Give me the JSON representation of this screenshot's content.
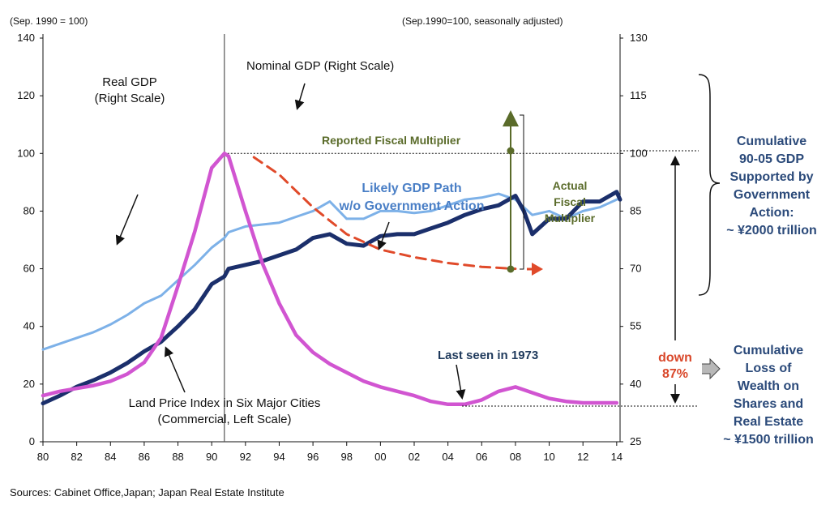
{
  "chart_data": {
    "type": "line",
    "left_axis": {
      "unit_note": "(Sep. 1990 = 100)",
      "range": [
        0,
        140
      ],
      "ticks": [
        "0",
        "20",
        "40",
        "60",
        "80",
        "100",
        "120",
        "140"
      ]
    },
    "right_axis": {
      "unit_note": "(Sep.1990=100, seasonally adjusted)",
      "range": [
        25,
        130
      ],
      "ticks": [
        "25",
        "40",
        "55",
        "70",
        "85",
        "100",
        "115",
        "130"
      ]
    },
    "x_axis": {
      "range": [
        1980,
        2014.2
      ],
      "ticks": [
        "80",
        "82",
        "84",
        "86",
        "88",
        "90",
        "92",
        "94",
        "96",
        "98",
        "00",
        "02",
        "04",
        "06",
        "08",
        "10",
        "12",
        "14"
      ]
    },
    "series": [
      {
        "name": "Nominal GDP (Right Scale)",
        "axis": "right",
        "color": "#1b2f6b",
        "points": [
          [
            1980,
            35
          ],
          [
            1981,
            37
          ],
          [
            1982,
            39.3
          ],
          [
            1983,
            41
          ],
          [
            1984,
            43
          ],
          [
            1985,
            45.5
          ],
          [
            1986,
            48.5
          ],
          [
            1987,
            51
          ],
          [
            1988,
            55
          ],
          [
            1989,
            59.5
          ],
          [
            1990,
            66
          ],
          [
            1990.75,
            68
          ],
          [
            1991,
            70
          ],
          [
            1992,
            71
          ],
          [
            1993,
            72
          ],
          [
            1994,
            73.5
          ],
          [
            1995,
            75
          ],
          [
            1996,
            78
          ],
          [
            1997,
            79
          ],
          [
            1998,
            76.5
          ],
          [
            1999,
            76
          ],
          [
            2000,
            78.5
          ],
          [
            2001,
            79
          ],
          [
            2002,
            79
          ],
          [
            2003,
            80.5
          ],
          [
            2004,
            82
          ],
          [
            2005,
            84
          ],
          [
            2006,
            85.5
          ],
          [
            2007,
            86.5
          ],
          [
            2008,
            89
          ],
          [
            2008.5,
            85
          ],
          [
            2009,
            79
          ],
          [
            2010,
            83
          ],
          [
            2011,
            83
          ],
          [
            2012,
            87.5
          ],
          [
            2013,
            87.5
          ],
          [
            2014,
            90
          ],
          [
            2014.2,
            88
          ]
        ]
      },
      {
        "name": "Real GDP (Right Scale)",
        "axis": "right",
        "color": "#7db1e8",
        "points": [
          [
            1980,
            49
          ],
          [
            1981,
            50.5
          ],
          [
            1982,
            52
          ],
          [
            1983,
            53.5
          ],
          [
            1984,
            55.5
          ],
          [
            1985,
            58
          ],
          [
            1986,
            61
          ],
          [
            1987,
            63
          ],
          [
            1988,
            67
          ],
          [
            1989,
            71
          ],
          [
            1990,
            75.5
          ],
          [
            1990.75,
            78
          ],
          [
            1991,
            79.5
          ],
          [
            1992,
            81
          ],
          [
            1993,
            81.5
          ],
          [
            1994,
            82
          ],
          [
            1995,
            83.5
          ],
          [
            1996,
            85
          ],
          [
            1997,
            87.5
          ],
          [
            1998,
            83
          ],
          [
            1999,
            83
          ],
          [
            2000,
            85
          ],
          [
            2001,
            85
          ],
          [
            2002,
            84.5
          ],
          [
            2003,
            85
          ],
          [
            2004,
            86.5
          ],
          [
            2005,
            88
          ],
          [
            2006,
            88.5
          ],
          [
            2007,
            89.5
          ],
          [
            2008,
            88
          ],
          [
            2009,
            84
          ],
          [
            2010,
            85
          ],
          [
            2011,
            83
          ],
          [
            2012,
            85
          ],
          [
            2013,
            86
          ],
          [
            2014,
            88
          ]
        ]
      },
      {
        "name": "Land Price Index in Six Major Cities (Commercial, Left Scale)",
        "axis": "left",
        "color": "#d155d1",
        "points": [
          [
            1980,
            16
          ],
          [
            1981,
            17.5
          ],
          [
            1982,
            18.5
          ],
          [
            1983,
            19.5
          ],
          [
            1984,
            21
          ],
          [
            1985,
            23.5
          ],
          [
            1986,
            27.5
          ],
          [
            1987,
            36
          ],
          [
            1988,
            54
          ],
          [
            1989,
            73
          ],
          [
            1990,
            95
          ],
          [
            1990.75,
            100
          ],
          [
            1991,
            99
          ],
          [
            1992,
            80
          ],
          [
            1993,
            62
          ],
          [
            1994,
            48
          ],
          [
            1995,
            37
          ],
          [
            1996,
            31
          ],
          [
            1997,
            27
          ],
          [
            1998,
            24
          ],
          [
            1999,
            21
          ],
          [
            2000,
            19
          ],
          [
            2001,
            17.5
          ],
          [
            2002,
            16
          ],
          [
            2003,
            14
          ],
          [
            2004,
            13
          ],
          [
            2005,
            13
          ],
          [
            2006,
            14.5
          ],
          [
            2007,
            17.5
          ],
          [
            2008,
            19
          ],
          [
            2009,
            17
          ],
          [
            2010,
            15
          ],
          [
            2011,
            14
          ],
          [
            2012,
            13.5
          ],
          [
            2013,
            13.5
          ],
          [
            2014,
            13.5
          ]
        ]
      },
      {
        "name": "Likely GDP Path w/o Government Action",
        "axis": "right",
        "color": "#e04a2a",
        "style": "dashed",
        "points": [
          [
            1992.5,
            99
          ],
          [
            1994,
            94.5
          ],
          [
            1996,
            86
          ],
          [
            1998,
            79
          ],
          [
            2000,
            75
          ],
          [
            2002,
            73
          ],
          [
            2004,
            71.5
          ],
          [
            2006,
            70.5
          ],
          [
            2008,
            70
          ]
        ]
      }
    ],
    "reference_line": {
      "axis": "right",
      "value": 100
    },
    "vertical_line_x": 1990.75,
    "annotations": {
      "nominal_gdp": "Nominal GDP (Right Scale)",
      "real_gdp_1": "Real GDP",
      "real_gdp_2": "(Right Scale)",
      "likely_path_1": "Likely GDP Path",
      "likely_path_2": "w/o Government Action",
      "reported_multiplier": "Reported  Fiscal  Multiplier",
      "actual_multiplier_1": "Actual",
      "actual_multiplier_2": "Fiscal",
      "actual_multiplier_3": "Multiplier",
      "land_price_1": "Land Price Index in Six Major Cities",
      "land_price_2": "(Commercial, Left Scale)",
      "last_seen": "Last seen in 1973",
      "down_1": "down",
      "down_2": "87%",
      "cumulative_gdp_1": "Cumulative",
      "cumulative_gdp_2": "90-05 GDP",
      "cumulative_gdp_3": "Supported by",
      "cumulative_gdp_4": "Government",
      "cumulative_gdp_5": "Action:",
      "cumulative_gdp_6": "~ ¥2000 trillion",
      "cumulative_loss_1": "Cumulative",
      "cumulative_loss_2": "Loss of",
      "cumulative_loss_3": "Wealth on",
      "cumulative_loss_4": "Shares and",
      "cumulative_loss_5": "Real Estate",
      "cumulative_loss_6": "~ ¥1500 trillion"
    },
    "source": "Sources: Cabinet Office,Japan; Japan Real Estate Institute"
  }
}
